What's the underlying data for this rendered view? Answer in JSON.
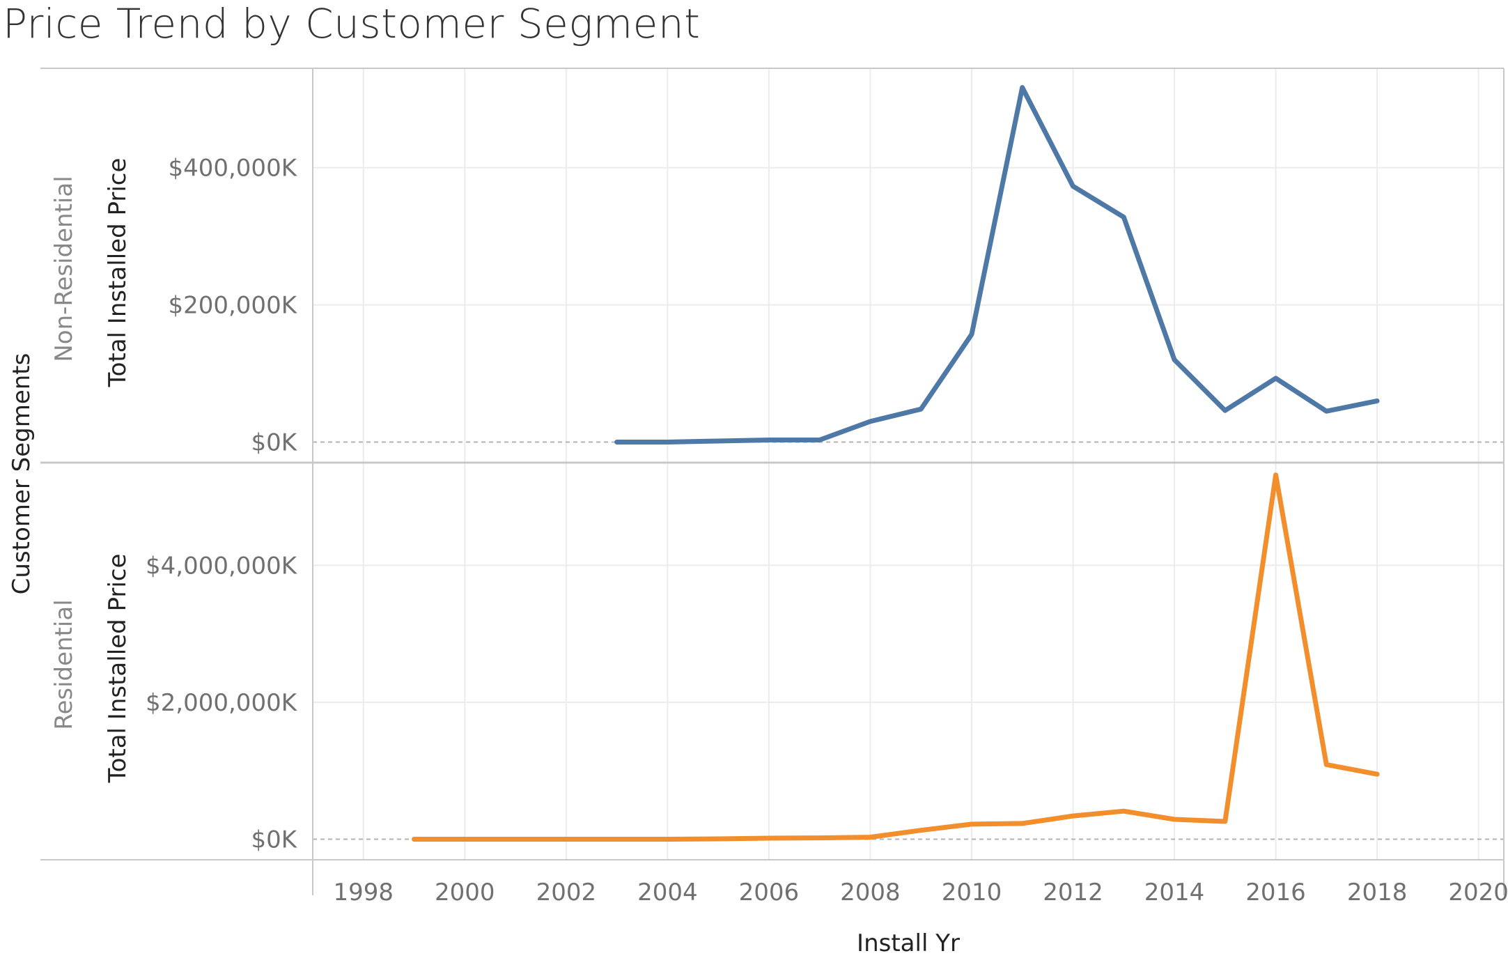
{
  "chart_data": {
    "type": "line",
    "title": "Price Trend by Customer Segment",
    "xlabel": "Install Yr",
    "row_label": "Customer Segments",
    "x_ticks": [
      "1998",
      "2000",
      "2002",
      "2004",
      "2006",
      "2008",
      "2010",
      "2012",
      "2014",
      "2016",
      "2018",
      "2020"
    ],
    "xlim": [
      1997,
      2020.5
    ],
    "grid": true,
    "panels": [
      {
        "segment": "Non-Residential",
        "ylabel": "Total Installed Price",
        "ylim": [
          -30000,
          545000
        ],
        "y_ticks": [
          0,
          200000,
          400000
        ],
        "y_tick_labels": [
          "$0K",
          "$200,000K",
          "$400,000K"
        ],
        "color": "#4e79a7",
        "x": [
          2003,
          2004,
          2005,
          2006,
          2007,
          2008,
          2009,
          2010,
          2011,
          2012,
          2013,
          2014,
          2015,
          2016,
          2017,
          2018
        ],
        "values": [
          0,
          0,
          1500,
          3000,
          3000,
          30000,
          48000,
          157000,
          517000,
          373000,
          328000,
          120000,
          46000,
          93000,
          45000,
          60000
        ]
      },
      {
        "segment": "Residential",
        "ylabel": "Total Installed Price",
        "ylim": [
          -300000,
          5500000
        ],
        "y_ticks": [
          0,
          2000000,
          4000000
        ],
        "y_tick_labels": [
          "$0K",
          "$2,000,000K",
          "$4,000,000K"
        ],
        "color": "#f28e2b",
        "x": [
          1999,
          2000,
          2001,
          2002,
          2003,
          2004,
          2005,
          2006,
          2007,
          2008,
          2009,
          2010,
          2011,
          2012,
          2013,
          2014,
          2015,
          2016,
          2017,
          2018
        ],
        "values": [
          0,
          0,
          0,
          0,
          0,
          0,
          5000,
          15000,
          20000,
          30000,
          130000,
          220000,
          230000,
          340000,
          410000,
          290000,
          260000,
          5320000,
          1090000,
          950000
        ]
      }
    ]
  },
  "colors": {
    "gridline": "#ececec",
    "border": "#c8c8c8",
    "zero_line": "#b3b3b3"
  }
}
